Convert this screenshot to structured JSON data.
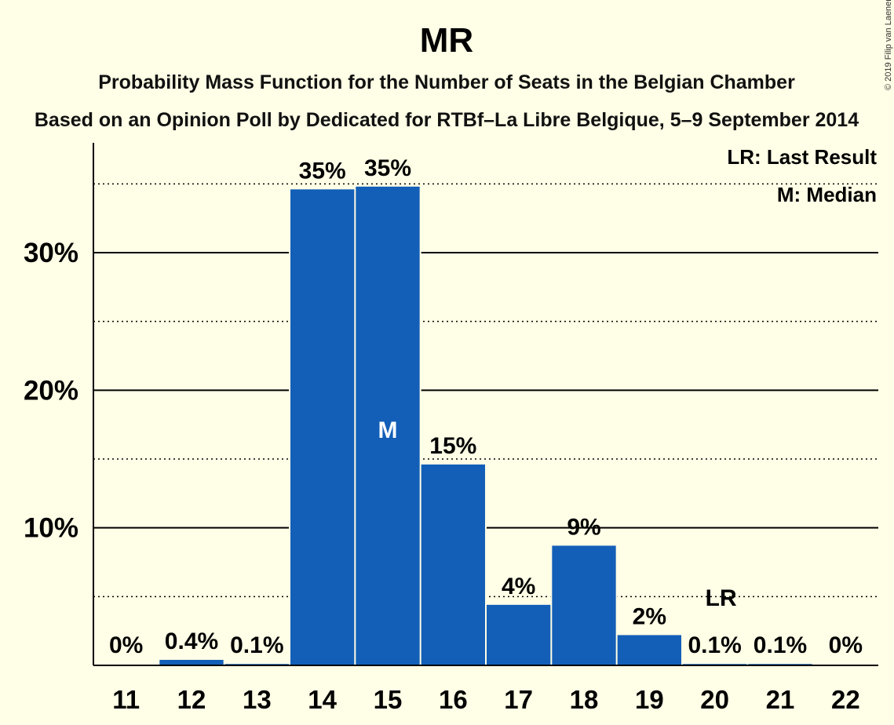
{
  "copyright": "© 2019 Filip van Laenen",
  "chart_data": {
    "type": "bar",
    "title": "MR",
    "subtitle": "Probability Mass Function for the Number of Seats in the Belgian Chamber",
    "subtitle2": "Based on an Opinion Poll by Dedicated for RTBf–La Libre Belgique, 5–9 September 2014",
    "categories": [
      "11",
      "12",
      "13",
      "14",
      "15",
      "16",
      "17",
      "18",
      "19",
      "20",
      "21",
      "22"
    ],
    "values": [
      0.0,
      0.4,
      0.1,
      34.6,
      34.8,
      14.6,
      4.4,
      8.7,
      2.2,
      0.1,
      0.1,
      0.0
    ],
    "data_labels": [
      "0%",
      "0.4%",
      "0.1%",
      "35%",
      "35%",
      "15%",
      "4%",
      "9%",
      "2%",
      "0.1%",
      "0.1%",
      "0%"
    ],
    "y_ticks": [
      10,
      20,
      30
    ],
    "y_tick_labels": [
      "10%",
      "20%",
      "30%"
    ],
    "y_minor_ticks": [
      5,
      15,
      25,
      35
    ],
    "ylim": [
      0,
      38
    ],
    "bar_color": "#135FB8",
    "median_category": "15",
    "median_marker": "M",
    "last_result_category": "20",
    "last_result_marker": "LR",
    "legend": [
      "LR: Last Result",
      "M: Median"
    ],
    "legend_position": "top-right"
  }
}
